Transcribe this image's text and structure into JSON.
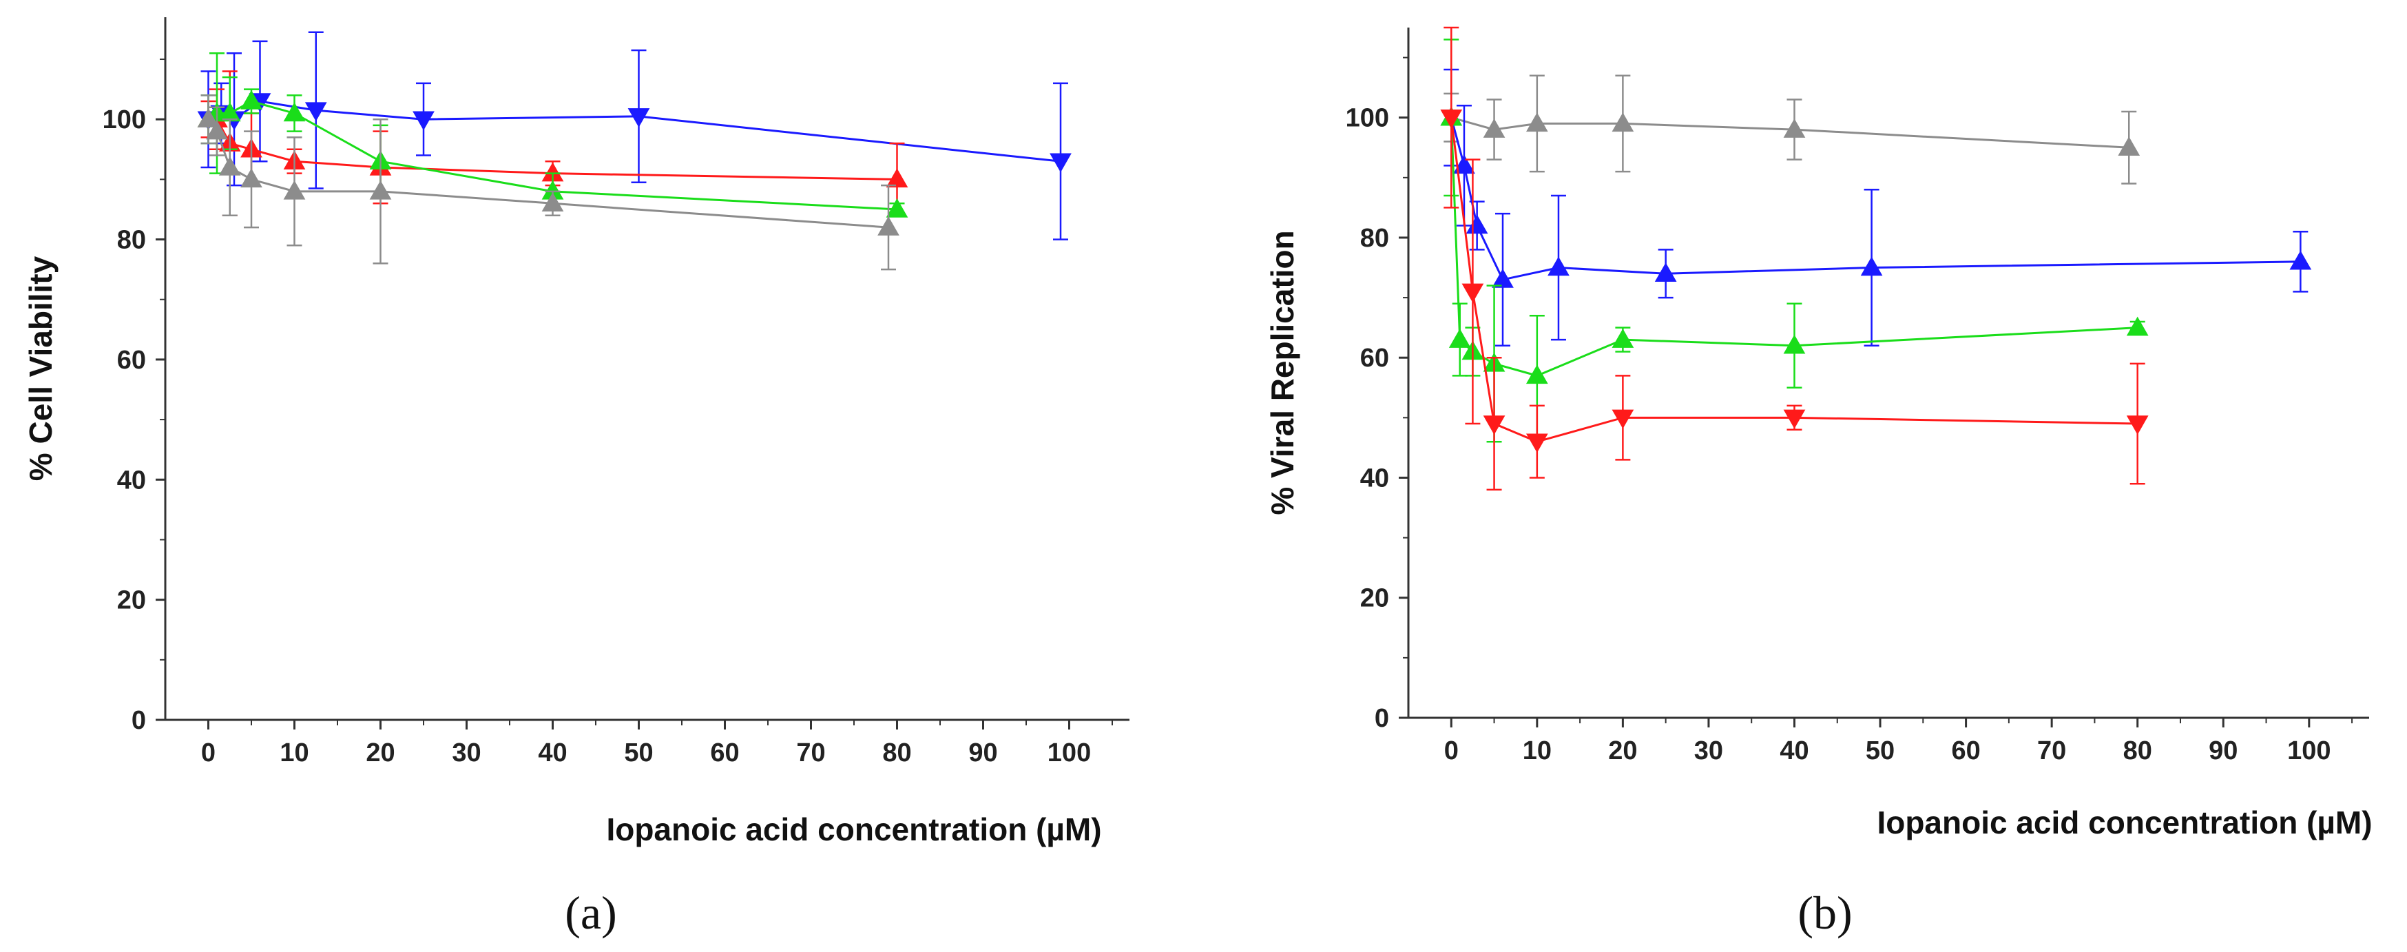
{
  "chart_data": [
    {
      "type": "line",
      "panel_label": "(a)",
      "xlabel": "Iopanoic acid concentration (µM)",
      "ylabel": "% Cell Viability",
      "xlim": [
        -5,
        107
      ],
      "ylim": [
        0,
        117
      ],
      "xticks": [
        "0",
        "10",
        "20",
        "30",
        "40",
        "50",
        "60",
        "70",
        "80",
        "90",
        "100"
      ],
      "yticks": [
        "0",
        "20",
        "40",
        "60",
        "80",
        "100"
      ],
      "series": [
        {
          "name": "blue",
          "color": "#1a1aff",
          "marker": "triangle-down",
          "x": [
            0,
            1.5,
            3,
            6,
            12.5,
            25,
            50,
            99
          ],
          "y": [
            100,
            101,
            100,
            103,
            101.5,
            100,
            100.5,
            93
          ],
          "err": [
            8,
            5,
            11,
            10,
            13,
            6,
            11,
            13
          ]
        },
        {
          "name": "red",
          "color": "#ff1a1a",
          "marker": "triangle-up",
          "x": [
            0,
            1,
            2.5,
            5,
            10,
            20,
            40,
            80
          ],
          "y": [
            100,
            100,
            96,
            95,
            93,
            92,
            91,
            90
          ],
          "err": [
            3,
            5,
            12,
            6,
            2,
            6,
            2,
            6
          ]
        },
        {
          "name": "green",
          "color": "#1add1a",
          "marker": "triangle-up",
          "x": [
            0,
            1,
            2.5,
            5,
            10,
            20,
            40,
            80
          ],
          "y": [
            100,
            101,
            101,
            103,
            101,
            93,
            88,
            85
          ],
          "err": [
            4,
            10,
            6,
            2,
            3,
            6,
            3,
            1
          ]
        },
        {
          "name": "gray",
          "color": "#8c8c8c",
          "marker": "triangle-up",
          "x": [
            0,
            1,
            2.5,
            5,
            10,
            20,
            40,
            79
          ],
          "y": [
            100,
            98,
            92,
            90,
            88,
            88,
            86,
            82
          ],
          "err": [
            4,
            4,
            8,
            8,
            9,
            12,
            2,
            7
          ]
        }
      ]
    },
    {
      "type": "line",
      "panel_label": "(b)",
      "xlabel": "Iopanoic acid concentration (µM)",
      "ylabel": "% Viral Replication",
      "xlim": [
        -5,
        107
      ],
      "ylim": [
        0,
        115
      ],
      "xticks": [
        "0",
        "10",
        "20",
        "30",
        "40",
        "50",
        "60",
        "70",
        "80",
        "90",
        "100"
      ],
      "yticks": [
        "0",
        "20",
        "40",
        "60",
        "80",
        "100"
      ],
      "series": [
        {
          "name": "gray",
          "color": "#8c8c8c",
          "marker": "triangle-up",
          "x": [
            0,
            5,
            10,
            20,
            40,
            79
          ],
          "y": [
            100,
            98,
            99,
            99,
            98,
            95
          ],
          "err": [
            4,
            5,
            8,
            8,
            5,
            6
          ]
        },
        {
          "name": "blue",
          "color": "#1a1aff",
          "marker": "triangle-up",
          "x": [
            0,
            1.5,
            3,
            6,
            12.5,
            25,
            49,
            99
          ],
          "y": [
            100,
            92,
            82,
            73,
            75,
            74,
            75,
            76
          ],
          "err": [
            8,
            10,
            4,
            11,
            12,
            4,
            13,
            5
          ]
        },
        {
          "name": "green",
          "color": "#1add1a",
          "marker": "triangle-up",
          "x": [
            0,
            1,
            2.5,
            5,
            10,
            20,
            40,
            80
          ],
          "y": [
            100,
            63,
            61,
            59,
            57,
            63,
            62,
            65
          ],
          "err": [
            13,
            6,
            4,
            13,
            10,
            2,
            7,
            1
          ]
        },
        {
          "name": "red",
          "color": "#ff1a1a",
          "marker": "triangle-down",
          "x": [
            0,
            2.5,
            5,
            10,
            20,
            40,
            80
          ],
          "y": [
            100,
            71,
            49,
            46,
            50,
            50,
            49
          ],
          "err": [
            15,
            22,
            11,
            6,
            7,
            2,
            10
          ]
        }
      ]
    }
  ]
}
